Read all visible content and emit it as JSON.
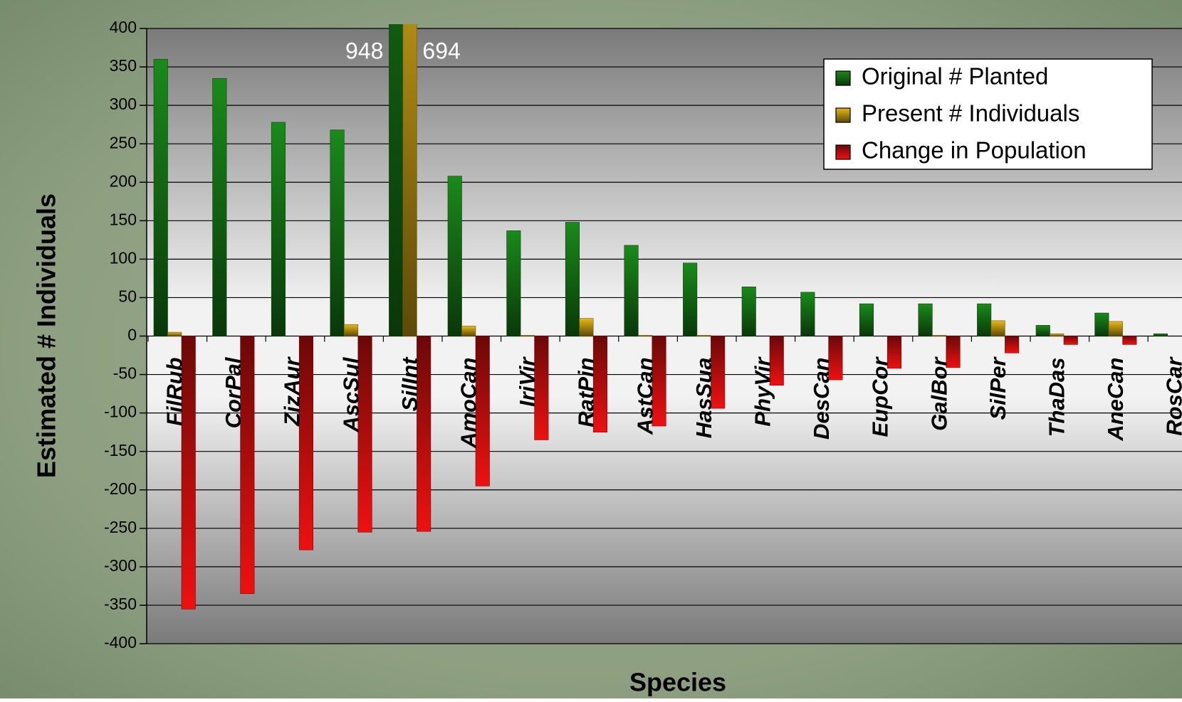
{
  "chart_data": {
    "type": "bar",
    "x_label": "Species",
    "y_label": "Estimated # Individuals",
    "categories": [
      "FilRub",
      "CorPal",
      "ZizAur",
      "AscSul",
      "SilInt",
      "AmoCan",
      "IriVir",
      "RatPin",
      "AstCan",
      "HasSua",
      "PhyVir",
      "DesCan",
      "EupCor",
      "GalBor",
      "SilPer",
      "ThaDas",
      "AneCan",
      "RosCar"
    ],
    "series": [
      {
        "name": "Original # Planted",
        "color": "#1a8a1a",
        "values": [
          360,
          335,
          278,
          268,
          948,
          208,
          137,
          148,
          118,
          95,
          64,
          57,
          42,
          42,
          42,
          14,
          30,
          3
        ],
        "value_labels": [
          null,
          null,
          null,
          null,
          "948",
          null,
          null,
          null,
          null,
          null,
          null,
          null,
          null,
          null,
          null,
          null,
          null,
          null
        ]
      },
      {
        "name": "Present # Individuals",
        "color": "#e8b818",
        "values": [
          5,
          0,
          0,
          15,
          694,
          13,
          1,
          23,
          1,
          1,
          0,
          0,
          0,
          1,
          20,
          3,
          19,
          null
        ],
        "value_labels": [
          null,
          null,
          null,
          null,
          "694",
          null,
          null,
          null,
          null,
          null,
          null,
          null,
          null,
          null,
          null,
          null,
          null,
          null
        ]
      },
      {
        "name": "Change in Population",
        "color": "#ee1111",
        "values": [
          -355,
          -335,
          -278,
          -255,
          -254,
          -195,
          -135,
          -125,
          -117,
          -94,
          -64,
          -57,
          -42,
          -41,
          -22,
          -11,
          -11,
          null
        ]
      }
    ],
    "ylim": [
      -400,
      400
    ],
    "yticks": [
      -400,
      -350,
      -300,
      -250,
      -200,
      -150,
      -100,
      -50,
      0,
      50,
      100,
      150,
      200,
      250,
      300,
      350,
      400
    ],
    "grid": true,
    "legend": "top-right"
  }
}
